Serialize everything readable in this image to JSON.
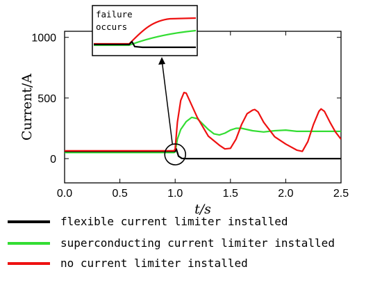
{
  "chart_data": {
    "type": "line",
    "xlabel": "t/s",
    "ylabel": "Current/A",
    "xlim": [
      0,
      2.5
    ],
    "ylim": [
      -200,
      1050
    ],
    "xticks": [
      "0.0",
      "0.5",
      "1.0",
      "1.5",
      "2.0",
      "2.5"
    ],
    "yticks": [
      "0",
      "500",
      "1000"
    ],
    "grid": false,
    "legend_position": "bottom",
    "series": [
      {
        "name": "flexible current limiter installed",
        "color": "#000000",
        "x": [
          0,
          0.99,
          1.0,
          1.01,
          1.03,
          1.06,
          1.1,
          2.5
        ],
        "y": [
          60,
          60,
          60,
          80,
          20,
          2,
          0,
          0
        ]
      },
      {
        "name": "superconducting current limiter installed",
        "color": "#33dd33",
        "x": [
          0,
          0.99,
          1.0,
          1.02,
          1.05,
          1.1,
          1.15,
          1.2,
          1.25,
          1.3,
          1.35,
          1.4,
          1.45,
          1.5,
          1.55,
          1.6,
          1.7,
          1.8,
          1.9,
          2.0,
          2.1,
          2.2,
          2.3,
          2.4,
          2.5
        ],
        "y": [
          50,
          50,
          55,
          160,
          240,
          305,
          340,
          330,
          285,
          240,
          205,
          195,
          210,
          235,
          250,
          250,
          230,
          220,
          230,
          235,
          225,
          225,
          225,
          225,
          225
        ]
      },
      {
        "name": "no current limiter installed",
        "color": "#ee1111",
        "x": [
          0,
          0.99,
          1.0,
          1.02,
          1.05,
          1.08,
          1.1,
          1.13,
          1.2,
          1.3,
          1.4,
          1.45,
          1.5,
          1.55,
          1.6,
          1.65,
          1.7,
          1.72,
          1.75,
          1.8,
          1.9,
          2.0,
          2.1,
          2.15,
          2.2,
          2.25,
          2.3,
          2.32,
          2.35,
          2.4,
          2.45,
          2.5
        ],
        "y": [
          65,
          65,
          80,
          300,
          480,
          545,
          540,
          480,
          340,
          185,
          110,
          80,
          85,
          160,
          280,
          370,
          400,
          405,
          385,
          300,
          180,
          120,
          70,
          60,
          140,
          280,
          390,
          410,
          390,
          300,
          220,
          160
        ]
      }
    ],
    "annotations": {
      "inset_text_line1": "failure",
      "inset_text_line2": "occurs"
    }
  }
}
